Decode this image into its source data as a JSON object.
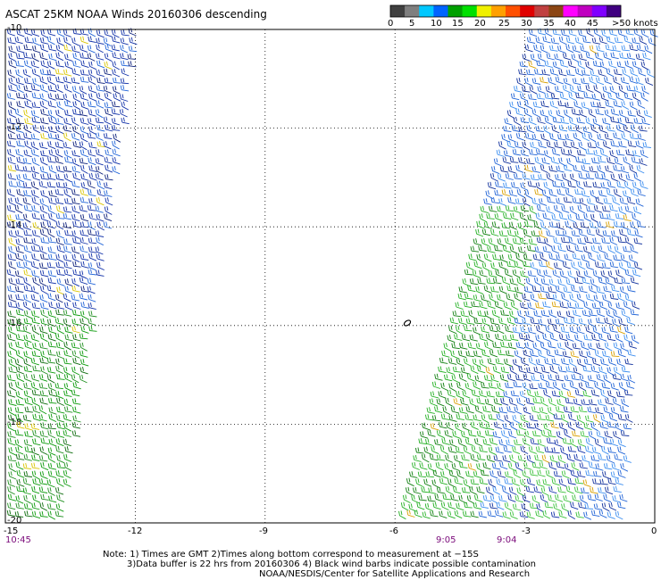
{
  "title": "ASCAT 25KM NOAA Winds 20160306 descending",
  "legend": {
    "labels": [
      "0",
      "5",
      "10",
      "15",
      "20",
      "25",
      "30",
      "35",
      "40",
      "45",
      ">50 knots"
    ],
    "colors": [
      "#404040",
      "#7f7f7f",
      "#00c8ff",
      "#0064ff",
      "#00a000",
      "#00e000",
      "#f0f000",
      "#ffa000",
      "#ff5000",
      "#e00000",
      "#c04040",
      "#8b4513",
      "#ff00ff",
      "#c000c0",
      "#8000ff",
      "#400080"
    ]
  },
  "axes": {
    "x_ticks": [
      "-15",
      "-12",
      "-9",
      "-6",
      "-3",
      "0"
    ],
    "y_ticks": [
      "-10",
      "-12",
      "-14",
      "-16",
      "-18",
      "-20"
    ]
  },
  "time_labels": [
    "10:45",
    "9:05",
    "9:04"
  ],
  "notes": [
    "Note: 1) Times are GMT 2)Times along bottom correspond to measurement at −15S",
    "3)Data buffer is 22 hrs from 20160306 4) Black wind barbs indicate possible contamination",
    "NOAA/NESDIS/Center for Satellite Applications and Research"
  ],
  "map": {
    "lon_range": [
      -15,
      0
    ],
    "lat_range": [
      -20,
      -10
    ],
    "grid": "dotted",
    "swaths": [
      {
        "name": "west",
        "time": "10:45"
      },
      {
        "name": "east",
        "time": "9:05 / 9:04"
      }
    ],
    "dominant_wind": "southeasterly trades, ~15-20 knots"
  }
}
